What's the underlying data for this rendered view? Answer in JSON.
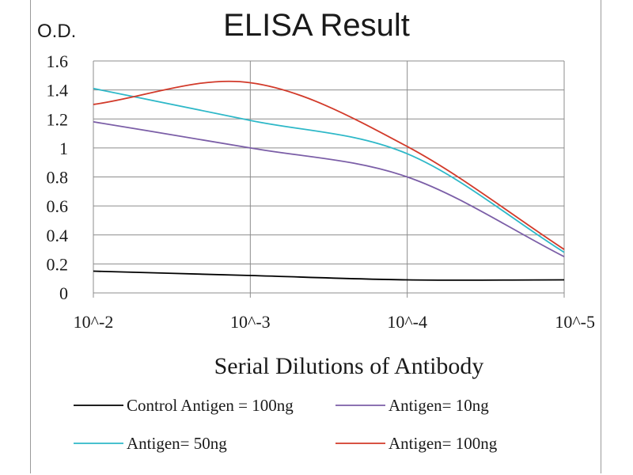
{
  "chart_data": {
    "type": "line",
    "title": "ELISA Result",
    "ylabel": "O.D.",
    "xlabel": "Serial Dilutions  of Antibody",
    "categories": [
      "10^-2",
      "10^-3",
      "10^-4",
      "10^-5"
    ],
    "y_ticks": [
      "0",
      "0.2",
      "0.4",
      "0.6",
      "0.8",
      "1",
      "1.2",
      "1.4",
      "1.6"
    ],
    "ylim": [
      0,
      1.6
    ],
    "grid": true,
    "legend_position": "bottom",
    "series": [
      {
        "name": "Control Antigen = 100ng",
        "color": "#000000",
        "values": [
          0.15,
          0.12,
          0.09,
          0.09
        ]
      },
      {
        "name": "Antigen= 10ng",
        "color": "#7b5ea7",
        "values": [
          1.18,
          1.0,
          0.8,
          0.25
        ]
      },
      {
        "name": "Antigen= 50ng",
        "color": "#2eb8c8",
        "values": [
          1.41,
          1.19,
          0.96,
          0.28
        ]
      },
      {
        "name": "Antigen= 100ng",
        "color": "#d23a2a",
        "values": [
          1.3,
          1.45,
          1.01,
          0.3
        ]
      }
    ]
  }
}
